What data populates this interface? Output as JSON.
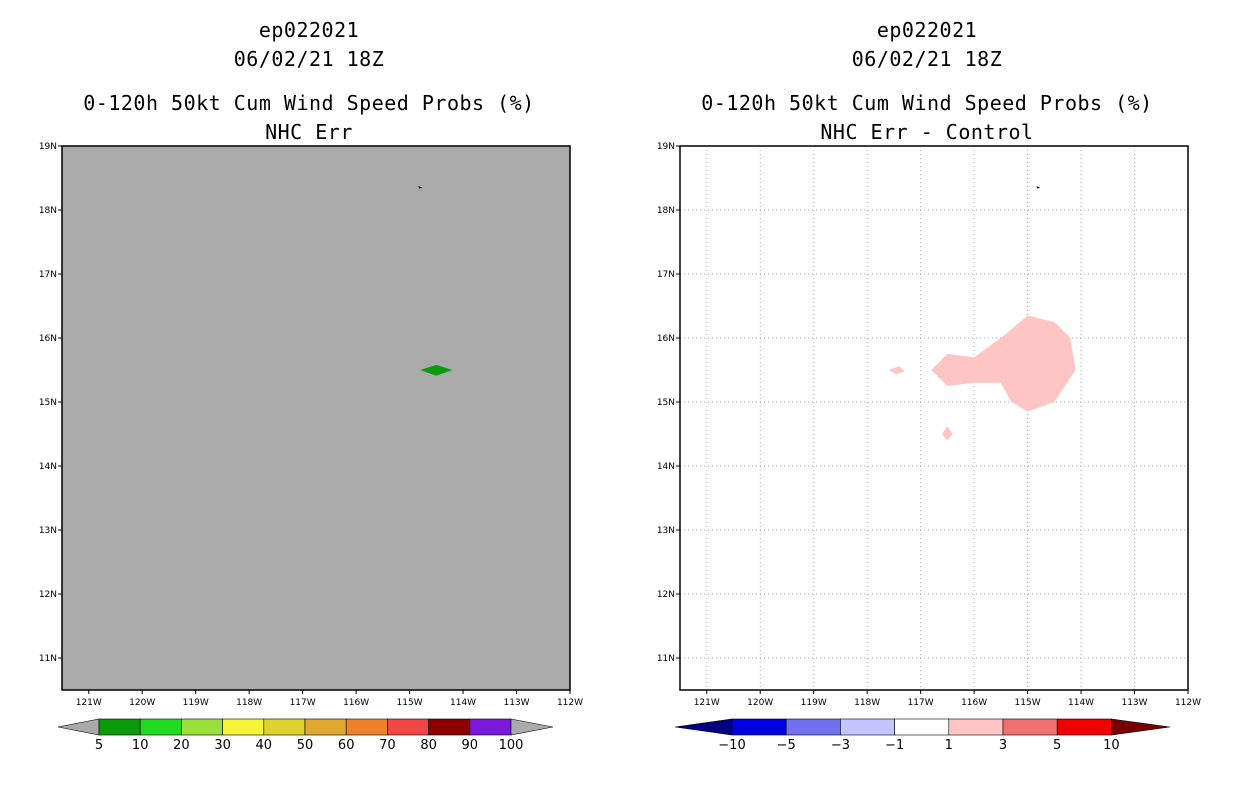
{
  "chart_data": [
    {
      "type": "heatmap",
      "id": "left",
      "storm_id": "ep022021",
      "datetime": "06/02/21 18Z",
      "title": "0-120h 50kt Cum Wind Speed Probs (%)",
      "subtitle": "NHC Err",
      "xlim": [
        -121.5,
        -112
      ],
      "ylim": [
        10.5,
        19
      ],
      "x_ticks": [
        {
          "value": -121,
          "label": "121W"
        },
        {
          "value": -120,
          "label": "120W"
        },
        {
          "value": -119,
          "label": "119W"
        },
        {
          "value": -118,
          "label": "118W"
        },
        {
          "value": -117,
          "label": "117W"
        },
        {
          "value": -116,
          "label": "116W"
        },
        {
          "value": -115,
          "label": "115W"
        },
        {
          "value": -114,
          "label": "114W"
        },
        {
          "value": -113,
          "label": "113W"
        },
        {
          "value": -112,
          "label": "112W"
        }
      ],
      "y_ticks": [
        {
          "value": 11,
          "label": "11N"
        },
        {
          "value": 12,
          "label": "12N"
        },
        {
          "value": 13,
          "label": "13N"
        },
        {
          "value": 14,
          "label": "14N"
        },
        {
          "value": 15,
          "label": "15N"
        },
        {
          "value": 16,
          "label": "16N"
        },
        {
          "value": 17,
          "label": "17N"
        },
        {
          "value": 18,
          "label": "18N"
        },
        {
          "value": 19,
          "label": "19N"
        }
      ],
      "grid": false,
      "background_color": "#aaaaaa",
      "regions": [
        {
          "name": "prob-5-10",
          "color": "#0a9a0a",
          "points": [
            [
              -114.8,
              15.5
            ],
            [
              -114.5,
              15.58
            ],
            [
              -114.2,
              15.5
            ],
            [
              -114.5,
              15.41
            ]
          ]
        }
      ],
      "markers": [
        {
          "name": "storm-position",
          "lon": -114.8,
          "lat": 18.35
        }
      ],
      "colorbar": {
        "left_arrow_color": "#aaaaaa",
        "right_arrow_color": "#aaaaaa",
        "colors": [
          "#0a9a0a",
          "#1fdc1f",
          "#98e03a",
          "#f5f53a",
          "#e0d22e",
          "#e0a82e",
          "#ef8228",
          "#f04646",
          "#8c0000",
          "#7a1adc"
        ],
        "labels": [
          "5",
          "10",
          "20",
          "30",
          "40",
          "50",
          "60",
          "70",
          "80",
          "90",
          "100"
        ]
      }
    },
    {
      "type": "heatmap",
      "id": "right",
      "storm_id": "ep022021",
      "datetime": "06/02/21 18Z",
      "title": "0-120h 50kt Cum Wind Speed Probs (%)",
      "subtitle": "NHC Err - Control",
      "xlim": [
        -121.5,
        -112
      ],
      "ylim": [
        10.5,
        19
      ],
      "x_ticks": [
        {
          "value": -121,
          "label": "121W"
        },
        {
          "value": -120,
          "label": "120W"
        },
        {
          "value": -119,
          "label": "119W"
        },
        {
          "value": -118,
          "label": "118W"
        },
        {
          "value": -117,
          "label": "117W"
        },
        {
          "value": -116,
          "label": "116W"
        },
        {
          "value": -115,
          "label": "115W"
        },
        {
          "value": -114,
          "label": "114W"
        },
        {
          "value": -113,
          "label": "113W"
        },
        {
          "value": -112,
          "label": "112W"
        }
      ],
      "y_ticks": [
        {
          "value": 11,
          "label": "11N"
        },
        {
          "value": 12,
          "label": "12N"
        },
        {
          "value": 13,
          "label": "13N"
        },
        {
          "value": 14,
          "label": "14N"
        },
        {
          "value": 15,
          "label": "15N"
        },
        {
          "value": 16,
          "label": "16N"
        },
        {
          "value": 17,
          "label": "17N"
        },
        {
          "value": 18,
          "label": "18N"
        },
        {
          "value": 19,
          "label": "19N"
        }
      ],
      "grid": true,
      "background_color": "#ffffff",
      "regions": [
        {
          "name": "diff-1-3-main",
          "color": "#ffc4c4",
          "points": [
            [
              -116.8,
              15.5
            ],
            [
              -116.5,
              15.75
            ],
            [
              -116.0,
              15.7
            ],
            [
              -115.5,
              16.0
            ],
            [
              -115.0,
              16.35
            ],
            [
              -114.5,
              16.25
            ],
            [
              -114.2,
              16.0
            ],
            [
              -114.1,
              15.5
            ],
            [
              -114.5,
              15.0
            ],
            [
              -115.0,
              14.85
            ],
            [
              -115.3,
              15.0
            ],
            [
              -115.5,
              15.3
            ],
            [
              -116.0,
              15.3
            ],
            [
              -116.5,
              15.25
            ]
          ]
        },
        {
          "name": "diff-1-3-west",
          "color": "#ffc4c4",
          "points": [
            [
              -117.6,
              15.5
            ],
            [
              -117.4,
              15.56
            ],
            [
              -117.3,
              15.48
            ],
            [
              -117.45,
              15.43
            ]
          ]
        },
        {
          "name": "diff-1-3-south",
          "color": "#ffc4c4",
          "points": [
            [
              -116.6,
              14.5
            ],
            [
              -116.5,
              14.62
            ],
            [
              -116.4,
              14.5
            ],
            [
              -116.5,
              14.4
            ]
          ]
        }
      ],
      "markers": [
        {
          "name": "storm-position",
          "lon": -114.8,
          "lat": 18.35
        }
      ],
      "colorbar": {
        "left_arrow_color": "#000080",
        "right_arrow_color": "#780000",
        "colors": [
          "#0000e0",
          "#7070f0",
          "#c4c4ff",
          "#ffffff",
          "#ffc4c4",
          "#f07070",
          "#f00000"
        ],
        "labels": [
          "-10",
          "-5",
          "-3",
          "-1",
          "1",
          "3",
          "5",
          "10"
        ]
      }
    }
  ]
}
